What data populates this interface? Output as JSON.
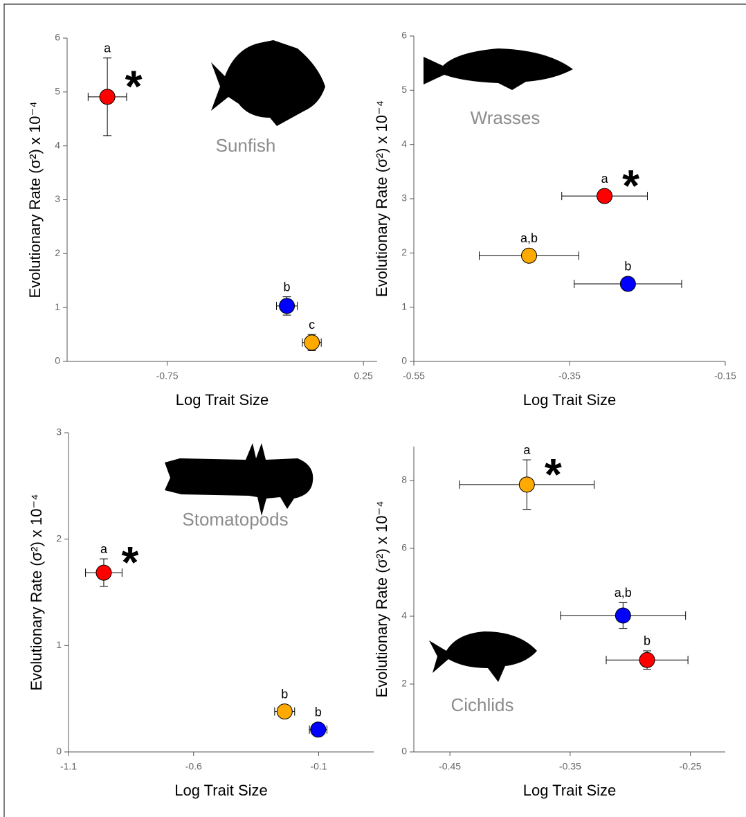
{
  "chart_data": [
    {
      "type": "scatter",
      "title": "Sunfish",
      "xlabel": "Log Trait Size",
      "ylabel": "Evolutionary Rate (σ²) x 10⁻⁴",
      "xlim": [
        -1.26,
        0.32
      ],
      "ylim": [
        0,
        6
      ],
      "xticks": [
        -0.75,
        0.25
      ],
      "yticks": [
        0,
        1,
        2,
        3,
        4,
        5,
        6
      ],
      "series": [
        {
          "color": "#ff0000",
          "x": [
            -1.055
          ],
          "values": [
            4.91
          ],
          "xerr": [
            0.098
          ],
          "yerr": [
            0.72
          ],
          "labels": [
            "a"
          ],
          "annotation": "*"
        },
        {
          "color": "#0000ff",
          "x": [
            -0.14
          ],
          "values": [
            1.03
          ],
          "xerr": [
            0.053
          ],
          "yerr": [
            0.17
          ],
          "labels": [
            "b"
          ]
        },
        {
          "color": "#ffaa00",
          "x": [
            -0.013
          ],
          "values": [
            0.35
          ],
          "xerr": [
            0.048
          ],
          "yerr": [
            0.15
          ],
          "labels": [
            "c"
          ]
        }
      ]
    },
    {
      "type": "scatter",
      "title": "Wrasses",
      "xlabel": "Log Trait Size",
      "ylabel": "Evolutionary Rate (σ²) x 10⁻⁴",
      "xlim": [
        -0.55,
        -0.15
      ],
      "ylim": [
        0,
        6
      ],
      "xticks": [
        -0.55,
        -0.35,
        -0.15
      ],
      "yticks": [
        0,
        1,
        2,
        3,
        4,
        5,
        6
      ],
      "series": [
        {
          "color": "#ff0000",
          "x": [
            -0.305
          ],
          "values": [
            3.05
          ],
          "xerr": [
            0.055
          ],
          "yerr": [
            0.1
          ],
          "labels": [
            "a"
          ],
          "annotation": "*"
        },
        {
          "color": "#ffaa00",
          "x": [
            -0.402
          ],
          "values": [
            1.95
          ],
          "xerr": [
            0.064
          ],
          "yerr": [
            0.08
          ],
          "labels": [
            "a,b"
          ]
        },
        {
          "color": "#0000ff",
          "x": [
            -0.275
          ],
          "values": [
            1.43
          ],
          "xerr": [
            0.069
          ],
          "yerr": [
            0.07
          ],
          "labels": [
            "b"
          ]
        }
      ]
    },
    {
      "type": "scatter",
      "title": "Stomatopods",
      "xlabel": "Log Trait Size",
      "ylabel": "Evolutionary Rate (σ²) x 10⁻⁴",
      "xlim": [
        -1.1,
        0.12
      ],
      "ylim": [
        0,
        3
      ],
      "xticks": [
        -1.1,
        -0.6,
        -0.1
      ],
      "yticks": [
        0,
        1,
        2,
        3
      ],
      "series": [
        {
          "color": "#ff0000",
          "x": [
            -0.959
          ],
          "values": [
            1.685
          ],
          "xerr": [
            0.073
          ],
          "yerr": [
            0.13
          ],
          "labels": [
            "a"
          ],
          "annotation": "*"
        },
        {
          "color": "#ffaa00",
          "x": [
            -0.236
          ],
          "values": [
            0.38
          ],
          "xerr": [
            0.04
          ],
          "yerr": [
            0.06
          ],
          "labels": [
            "b"
          ]
        },
        {
          "color": "#0000ff",
          "x": [
            -0.102
          ],
          "values": [
            0.21
          ],
          "xerr": [
            0.035
          ],
          "yerr": [
            0.05
          ],
          "labels": [
            "b"
          ]
        }
      ]
    },
    {
      "type": "scatter",
      "title": "Cichlids",
      "xlabel": "Log Trait Size",
      "ylabel": "Evolutionary Rate (σ²) x 10⁻⁴",
      "xlim": [
        -0.48,
        -0.221
      ],
      "ylim": [
        0,
        9
      ],
      "xticks": [
        -0.45,
        -0.35,
        -0.25
      ],
      "yticks": [
        0,
        2,
        4,
        6,
        8
      ],
      "series": [
        {
          "color": "#ffaa00",
          "x": [
            -0.386
          ],
          "values": [
            7.88
          ],
          "xerr": [
            0.056
          ],
          "yerr": [
            0.73
          ],
          "labels": [
            "a"
          ],
          "annotation": "*"
        },
        {
          "color": "#0000ff",
          "x": [
            -0.306
          ],
          "values": [
            4.02
          ],
          "xerr": [
            0.052
          ],
          "yerr": [
            0.38
          ],
          "labels": [
            "a,b"
          ]
        },
        {
          "color": "#ff0000",
          "x": [
            -0.286
          ],
          "values": [
            2.71
          ],
          "xerr": [
            0.034
          ],
          "yerr": [
            0.27
          ],
          "labels": [
            "b"
          ]
        }
      ]
    }
  ]
}
